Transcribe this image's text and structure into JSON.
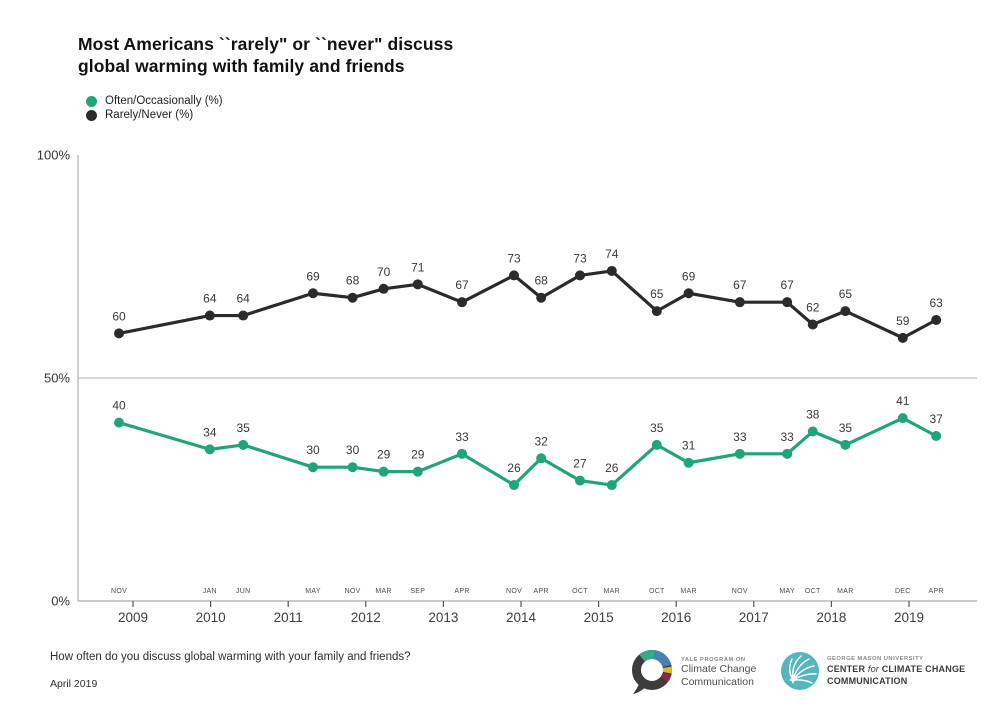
{
  "title": {
    "line1": "Most Americans ``rarely\" or ``never\" discuss",
    "line2": "global warming with family and friends"
  },
  "legend": {
    "items": [
      {
        "label": "Often/Occasionally (%)",
        "color": "#21a47a"
      },
      {
        "label": "Rarely/Never (%)",
        "color": "#2b2b2b"
      }
    ]
  },
  "colors": {
    "accent_green": "#21a47a",
    "series_black": "#2b2b2b",
    "axis_gray": "#c2c2c2",
    "label_dark": "#3a3a3a",
    "gmu_teal": "#55b6bd"
  },
  "footer": {
    "question": "How often do you discuss global warming with your family and friends?",
    "date": "April 2019"
  },
  "logos": {
    "yale": {
      "eyebrow": "YALE PROGRAM ON",
      "line1": "Climate Change",
      "line2": "Communication"
    },
    "gmu": {
      "eyebrow": "GEORGE MASON UNIVERSITY",
      "center_pre": "CENTER ",
      "center_for": "for",
      "center_post": " CLIMATE CHANGE",
      "line2": "COMMUNICATION"
    }
  },
  "chart_data": {
    "type": "line",
    "title": "Most Americans ``rarely\" or ``never\" discuss global warming with family and friends",
    "xlabel": "",
    "ylabel": "",
    "ylim": [
      0,
      100
    ],
    "grid": "single horizontal gridline at 50%",
    "legend_position": "top-left",
    "y_ticks": [
      {
        "value": 0,
        "label": "0%"
      },
      {
        "value": 50,
        "label": "50%"
      },
      {
        "value": 100,
        "label": "100%"
      }
    ],
    "gridline_at": 50,
    "year_ticks": [
      2009,
      2010,
      2011,
      2012,
      2013,
      2014,
      2015,
      2016,
      2017,
      2018,
      2019
    ],
    "x_months": [
      "NOV",
      "JAN",
      "JUN",
      "MAY",
      "NOV",
      "MAR",
      "SEP",
      "APR",
      "NOV",
      "APR",
      "OCT",
      "MAR",
      "OCT",
      "MAR",
      "NOV",
      "MAY",
      "OCT",
      "MAR",
      "DEC",
      "APR"
    ],
    "x": [
      2008.82,
      2009.99,
      2010.42,
      2011.32,
      2011.83,
      2012.23,
      2012.67,
      2013.24,
      2013.91,
      2014.26,
      2014.76,
      2015.17,
      2015.75,
      2016.16,
      2016.82,
      2017.43,
      2017.76,
      2018.18,
      2018.92,
      2019.35
    ],
    "series": [
      {
        "name": "Rarely/Never (%)",
        "color": "#2b2b2b",
        "values": [
          60,
          64,
          64,
          69,
          68,
          70,
          71,
          67,
          73,
          68,
          73,
          74,
          65,
          69,
          67,
          67,
          62,
          65,
          59,
          63
        ]
      },
      {
        "name": "Often/Occasionally (%)",
        "color": "#21a47a",
        "values": [
          40,
          34,
          35,
          30,
          30,
          29,
          29,
          33,
          26,
          32,
          27,
          26,
          35,
          31,
          33,
          33,
          38,
          35,
          41,
          37
        ]
      }
    ]
  }
}
